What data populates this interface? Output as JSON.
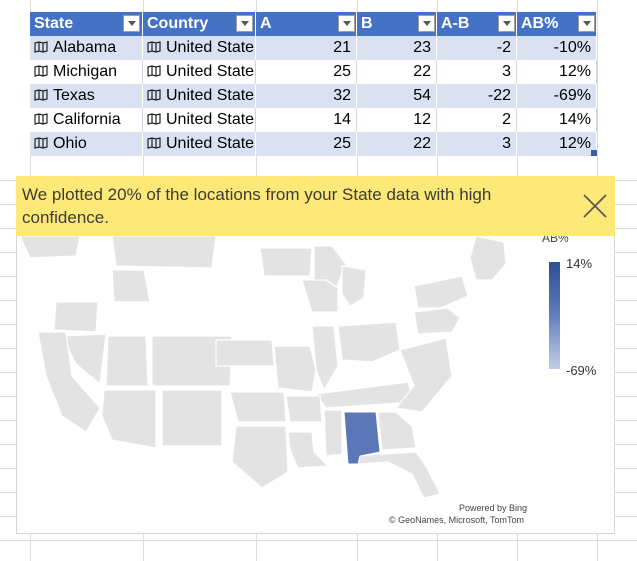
{
  "table": {
    "headers": [
      "State",
      "Country",
      "A",
      "B",
      "A-B",
      "AB%"
    ],
    "rows": [
      {
        "state": "Alabama",
        "country": "United State",
        "a": "21",
        "b": "23",
        "ab": "-2",
        "pct": "-10%"
      },
      {
        "state": "Michigan",
        "country": "United State",
        "a": "25",
        "b": "22",
        "ab": "3",
        "pct": "12%"
      },
      {
        "state": "Texas",
        "country": "United State",
        "a": "32",
        "b": "54",
        "ab": "-22",
        "pct": "-69%"
      },
      {
        "state": "California",
        "country": "United State",
        "a": "14",
        "b": "12",
        "ab": "2",
        "pct": "14%"
      },
      {
        "state": "Ohio",
        "country": "United State",
        "a": "25",
        "b": "22",
        "ab": "3",
        "pct": "12%"
      }
    ],
    "colors": {
      "header": "#4472c4",
      "band": "#d9e1f2"
    }
  },
  "notification": {
    "text": "We plotted 20% of the locations from your State data with high confidence.",
    "background": "#fde978",
    "close_icon": "close-icon"
  },
  "map": {
    "legend": {
      "title": "AB%",
      "max": "14%",
      "min": "-69%"
    },
    "highlighted_state": "Alabama",
    "highlight_color": "#5a77b8",
    "base_color": "#e3e3e3",
    "credit_line1": "Powered by Bing",
    "credit_line2": "© GeoNames, Microsoft, TomTom"
  }
}
